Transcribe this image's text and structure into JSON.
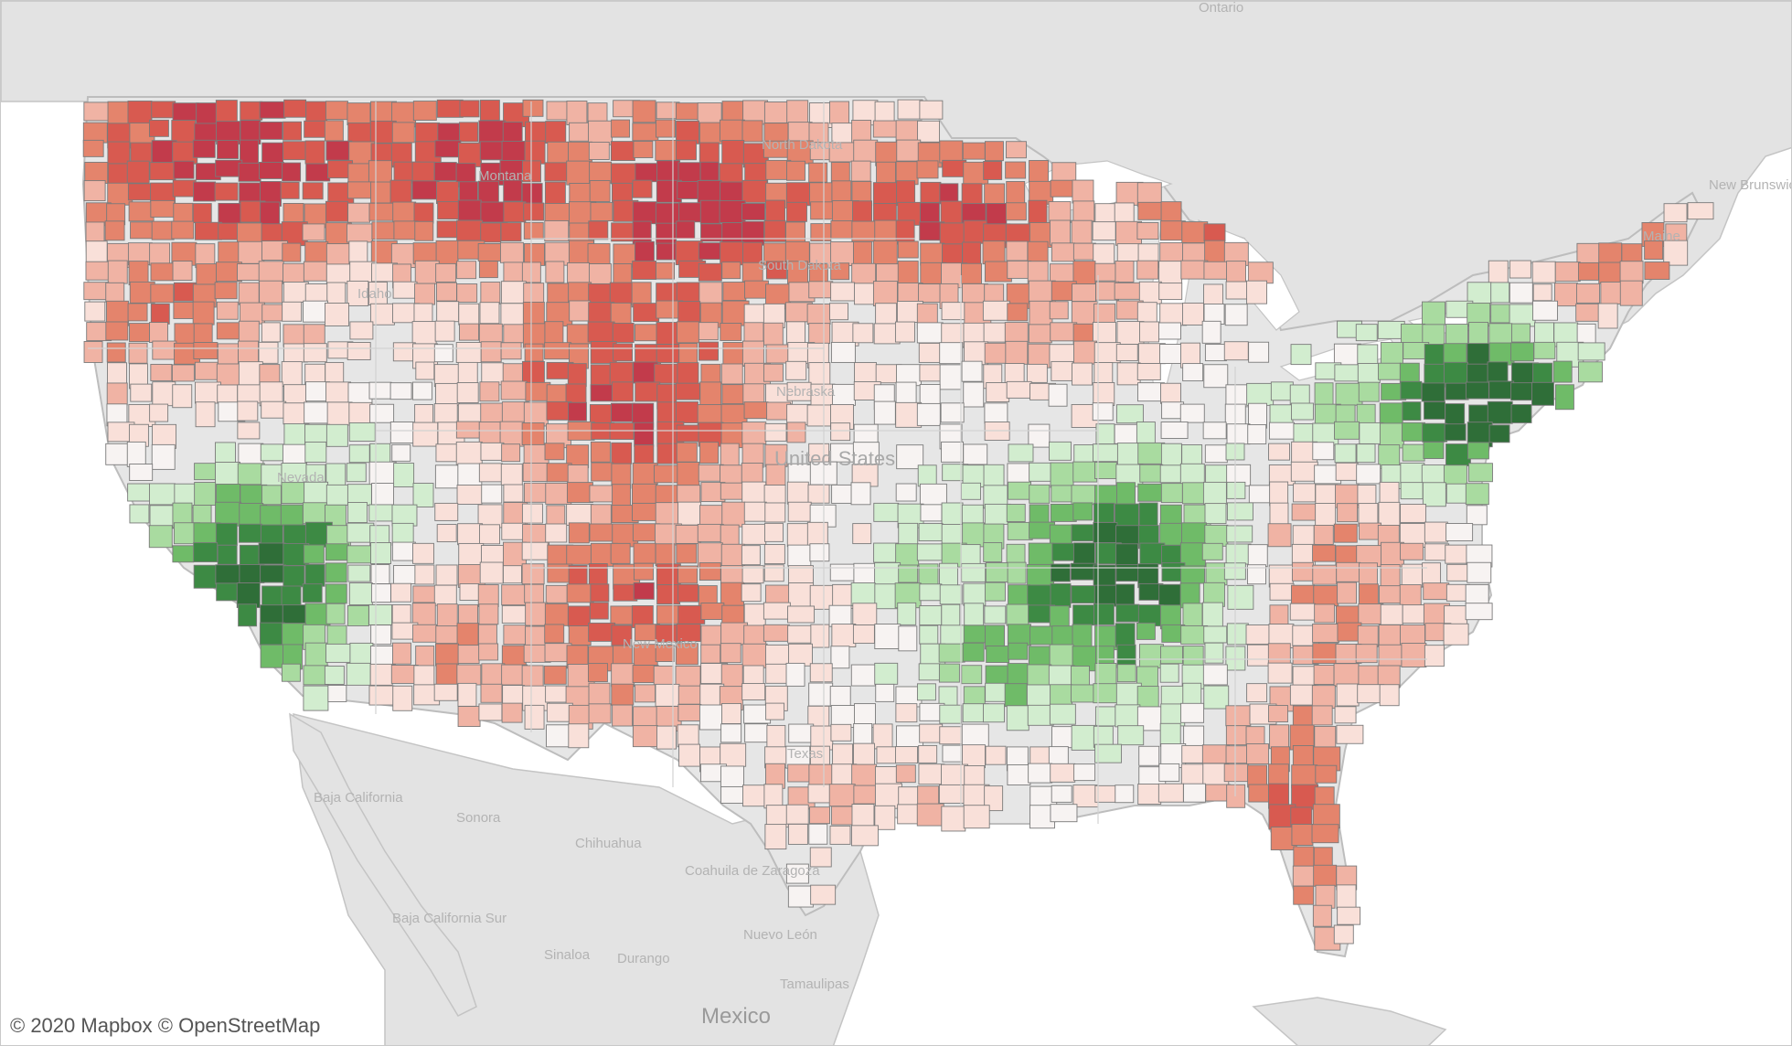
{
  "attribution": "© 2020 Mapbox © OpenStreetMap",
  "labels": {
    "ontario": "Ontario",
    "montana": "Montana",
    "north_dakota": "North Dakota",
    "south_dakota": "South Dakota",
    "idaho": "Idaho",
    "nebraska": "Nebraska",
    "us": "United States",
    "nevada": "Nevada",
    "new_mexico": "New Mexico",
    "texas": "Texas",
    "new_brunswick": "New Brunswick",
    "maine": "Maine",
    "baja_california": "Baja California",
    "sonora": "Sonora",
    "chihuahua": "Chihuahua",
    "coahuila": "Coahuila de Zaragoza",
    "baja_california_sur": "Baja California Sur",
    "sinaloa": "Sinaloa",
    "durango": "Durango",
    "nuevo_leon": "Nuevo León",
    "tamaulipas": "Tamaulipas",
    "mexico": "Mexico"
  },
  "colors": {
    "water": "#ffffff",
    "land": "#e3e3e3",
    "us_land": "#e6e6e6",
    "lakes": "#ffffff",
    "border": "#c4c4c4",
    "dark_red": "#c23b4b",
    "red": "#d85a50",
    "mid_red": "#e4846c",
    "light_red": "#f0b3a4",
    "pale_red": "#f9e0d9",
    "neutral": "#f7f3f2",
    "pale_green": "#d2edcf",
    "light_green": "#a9dba0",
    "mid_green": "#6fbb68",
    "dark_green": "#3d8a44",
    "darkest_green": "#2f6e38"
  }
}
